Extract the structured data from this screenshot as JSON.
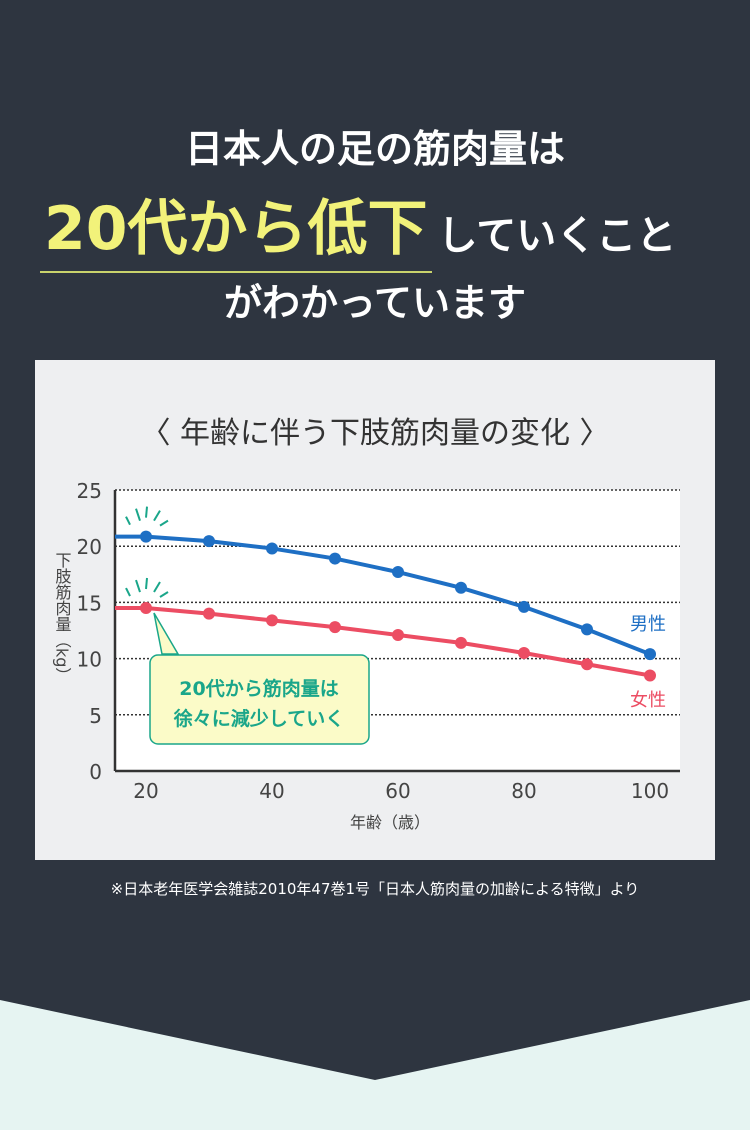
{
  "headline": {
    "line1": "日本人の足の筋肉量は",
    "highlight": "20代から低下",
    "line2_rest": "していくこと",
    "line3": "がわかっています"
  },
  "chart_data": {
    "type": "line",
    "title": "〈 年齢に伴う下肢筋肉量の変化 〉",
    "xlabel": "年齢（歳）",
    "ylabel": "下肢筋肉量（kg）",
    "ylim": [
      0,
      25
    ],
    "xlim": [
      15,
      102
    ],
    "yticks": [
      0,
      5,
      10,
      15,
      20,
      25
    ],
    "xticks": [
      20,
      40,
      60,
      80,
      100
    ],
    "grid": true,
    "x": [
      20,
      30,
      40,
      50,
      60,
      70,
      80,
      90,
      100
    ],
    "series": [
      {
        "name": "男性",
        "color": "#1e6fc4",
        "values": [
          20.85,
          20.45,
          19.8,
          18.9,
          17.7,
          16.3,
          14.6,
          12.6,
          10.4
        ]
      },
      {
        "name": "女性",
        "color": "#ec4d63",
        "values": [
          14.5,
          14.0,
          13.4,
          12.8,
          12.1,
          11.4,
          10.5,
          9.5,
          8.5
        ]
      }
    ],
    "annotation": {
      "line1": "20代から筋肉量は",
      "line2": "徐々に減少していく",
      "color": "#1aa68a",
      "fill": "#fbfbc8"
    }
  },
  "source": "※日本老年医学会雑誌2010年47巻1号「日本人筋肉量の加齢による特徴」より"
}
